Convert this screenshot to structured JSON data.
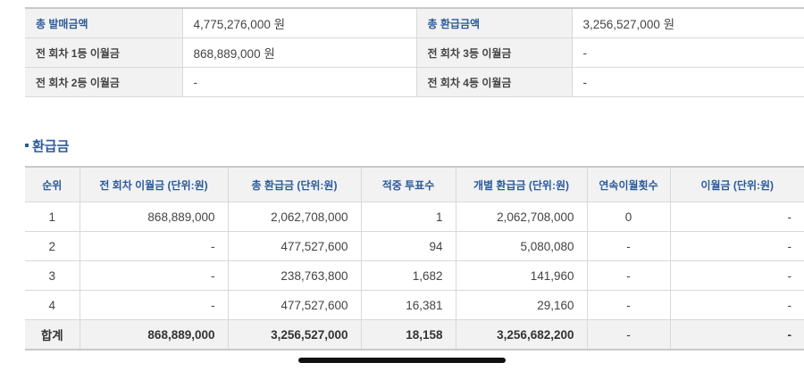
{
  "summary": {
    "rows": [
      [
        {
          "label": "총 발매금액",
          "value": "4,775,276,000 원"
        },
        {
          "label": "총 환급금액",
          "value": "3,256,527,000 원"
        }
      ],
      [
        {
          "label": "전 회차 1등 이월금",
          "value": "868,889,000 원"
        },
        {
          "label": "전 회차 3등 이월금",
          "value": "-"
        }
      ],
      [
        {
          "label": "전 회차 2등 이월금",
          "value": "-"
        },
        {
          "label": "전 회차 4등 이월금",
          "value": "-"
        }
      ]
    ]
  },
  "refund": {
    "title": "환급금",
    "headers": [
      "순위",
      "전 회차 이월금 (단위:원)",
      "총 환급금 (단위:원)",
      "적중 투표수",
      "개별 환급금 (단위:원)",
      "연속이월횟수",
      "이월금 (단위:원)"
    ],
    "rows": [
      [
        "1",
        "868,889,000",
        "2,062,708,000",
        "1",
        "2,062,708,000",
        "0",
        "-"
      ],
      [
        "2",
        "-",
        "477,527,600",
        "94",
        "5,080,080",
        "-",
        "-"
      ],
      [
        "3",
        "-",
        "238,763,800",
        "1,682",
        "141,960",
        "-",
        "-"
      ],
      [
        "4",
        "-",
        "477,527,600",
        "16,381",
        "29,160",
        "-",
        "-"
      ]
    ],
    "total": [
      "합계",
      "868,889,000",
      "3,256,527,000",
      "18,158",
      "3,256,682,200",
      "-",
      "-"
    ]
  }
}
